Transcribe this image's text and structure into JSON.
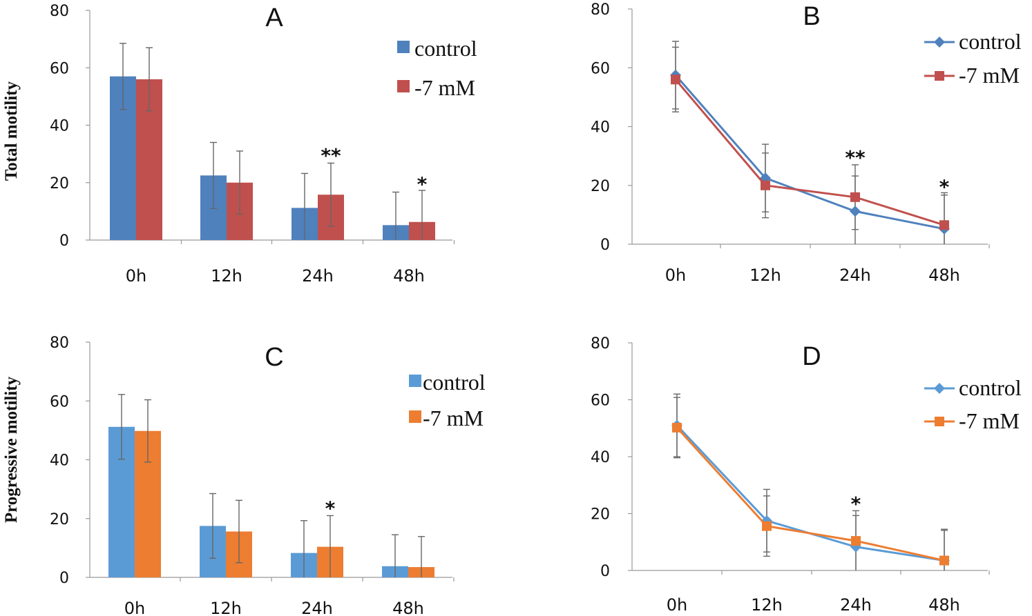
{
  "figure_title": "",
  "y_labels": [
    "Total motility",
    "Progressive motility"
  ],
  "colors": {
    "control_top": "#4f81bd",
    "mm_top": "#c0504d",
    "control_bottom": "#5b9bd5",
    "mm_bottom": "#ed7d31"
  },
  "chart_data": [
    {
      "panel": "A",
      "type": "bar",
      "title": "A",
      "ylabel": "Total motility",
      "xlabel": "",
      "ylim": [
        0,
        80
      ],
      "yticks": [
        "0",
        "20",
        "40",
        "60",
        "80"
      ],
      "categories": [
        "0h",
        "12h",
        "24h",
        "48h"
      ],
      "series": [
        {
          "name": "control",
          "color": "#4f81bd",
          "values": [
            57,
            22.5,
            11.2,
            5.2
          ],
          "errors": [
            11.5,
            11.5,
            12,
            11.5
          ]
        },
        {
          "name": "-7 mM",
          "color": "#c0504d",
          "values": [
            56,
            20,
            15.8,
            6.3
          ],
          "errors": [
            11,
            11,
            11,
            11
          ]
        }
      ],
      "significance": [
        {
          "category": "24h",
          "label": "**",
          "at": 31
        },
        {
          "category": "48h",
          "label": "*",
          "at": 21
        }
      ],
      "legend_position": "top-right"
    },
    {
      "panel": "B",
      "type": "line",
      "title": "B",
      "ylabel": "",
      "xlabel": "",
      "ylim": [
        0,
        80
      ],
      "yticks": [
        "0",
        "20",
        "40",
        "60",
        "80"
      ],
      "categories": [
        "0h",
        "12h",
        "24h",
        "48h"
      ],
      "series": [
        {
          "name": "control",
          "color": "#4f81bd",
          "marker": "diamond",
          "values": [
            57.5,
            22.5,
            11.2,
            5.2
          ],
          "errors": [
            11.5,
            11.5,
            12,
            11.5
          ]
        },
        {
          "name": "-7 mM",
          "color": "#c0504d",
          "marker": "square",
          "values": [
            56,
            20,
            16,
            6.5
          ],
          "errors": [
            11,
            11,
            11,
            11
          ]
        }
      ],
      "significance": [
        {
          "category": "24h",
          "label": "**",
          "at": 31
        },
        {
          "category": "48h",
          "label": "*",
          "at": 21
        }
      ],
      "legend_position": "top-right"
    },
    {
      "panel": "C",
      "type": "bar",
      "title": "C",
      "ylabel": "Progressive motility",
      "xlabel": "",
      "ylim": [
        0,
        80
      ],
      "yticks": [
        "0",
        "20",
        "40",
        "60",
        "80"
      ],
      "categories": [
        "0h",
        "12h",
        "24h",
        "48h"
      ],
      "series": [
        {
          "name": "control",
          "color": "#5b9bd5",
          "values": [
            51.2,
            17.5,
            8.3,
            3.8
          ],
          "errors": [
            11,
            11,
            11,
            10.7
          ]
        },
        {
          "name": "-7 mM",
          "color": "#ed7d31",
          "values": [
            49.8,
            15.6,
            10.4,
            3.5
          ],
          "errors": [
            10.6,
            10.6,
            10.6,
            10.4
          ]
        }
      ],
      "significance": [
        {
          "category": "24h",
          "label": "*",
          "at": 25
        }
      ],
      "legend_position": "top-right"
    },
    {
      "panel": "D",
      "type": "line",
      "title": "D",
      "ylabel": "",
      "xlabel": "",
      "ylim": [
        0,
        80
      ],
      "yticks": [
        "0",
        "20",
        "40",
        "60",
        "80"
      ],
      "categories": [
        "0h",
        "12h",
        "24h",
        "48h"
      ],
      "series": [
        {
          "name": "control",
          "color": "#5b9bd5",
          "marker": "diamond",
          "values": [
            51,
            17.5,
            8.3,
            3.5
          ],
          "errors": [
            11,
            11,
            11,
            11
          ]
        },
        {
          "name": "-7 mM",
          "color": "#ed7d31",
          "marker": "square",
          "values": [
            50.2,
            15.6,
            10.4,
            3.5
          ],
          "errors": [
            10.6,
            10.6,
            10.6,
            10.6
          ]
        }
      ],
      "significance": [
        {
          "category": "24h",
          "label": "*",
          "at": 25
        }
      ],
      "legend_position": "top-right"
    }
  ]
}
